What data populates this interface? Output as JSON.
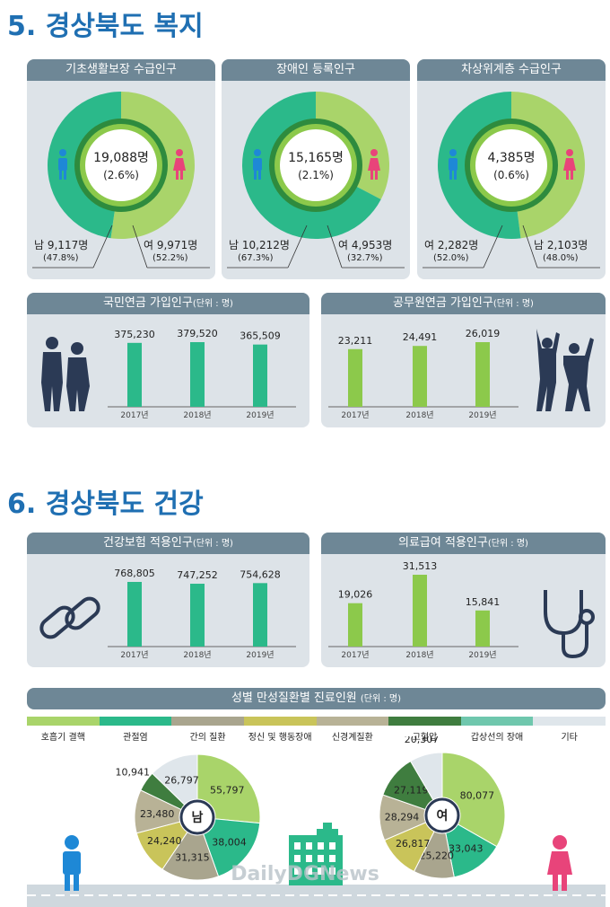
{
  "section5": {
    "title": "5. 경상북도 복지"
  },
  "section6": {
    "title": "6. 경상북도 건강"
  },
  "welfare_donuts": [
    {
      "header": "기초생활보장 수급인구",
      "total": "19,088명",
      "total_pct": "(2.6%)",
      "left_label": "남 9,117명",
      "left_pct": "(47.8%)",
      "right_label": "여 9,971명",
      "right_pct": "(52.2%)"
    },
    {
      "header": "장애인 등록인구",
      "total": "15,165명",
      "total_pct": "(2.1%)",
      "left_label": "남 10,212명",
      "left_pct": "(67.3%)",
      "right_label": "여 4,953명",
      "right_pct": "(32.7%)"
    },
    {
      "header": "차상위계층 수급인구",
      "total": "4,385명",
      "total_pct": "(0.6%)",
      "left_label": "여 2,282명",
      "left_pct": "(52.0%)",
      "right_label": "남 2,103명",
      "right_pct": "(48.0%)"
    }
  ],
  "unit_label": "(단위 : 명)",
  "bar_panels": [
    {
      "title": "국민연금 가입인구",
      "labels": [
        "375,230",
        "379,520",
        "365,509"
      ],
      "years": [
        "2017년",
        "2018년",
        "2019년"
      ]
    },
    {
      "title": "공무원연금 가입인구",
      "labels": [
        "23,211",
        "24,491",
        "26,019"
      ],
      "years": [
        "2017년",
        "2018년",
        "2019년"
      ]
    },
    {
      "title": "건강보험 적용인구",
      "labels": [
        "768,805",
        "747,252",
        "754,628"
      ],
      "years": [
        "2017년",
        "2018년",
        "2019년"
      ]
    },
    {
      "title": "의료급여 적용인구",
      "labels": [
        "19,026",
        "31,513",
        "15,841"
      ],
      "years": [
        "2017년",
        "2018년",
        "2019년"
      ]
    }
  ],
  "disease": {
    "header": "성별 만성질환별 진료인원",
    "legend": [
      "호흡기 결핵",
      "관절염",
      "간의 질환",
      "정신 및 행동장애",
      "신경계질환",
      "고혈압",
      "갑상선의 장애",
      "기타"
    ],
    "male_label": "남",
    "female_label": "여"
  },
  "watermark": "DailyDGNews",
  "colors": {
    "teal": "#2bb98a",
    "lightgreen": "#a9d46a",
    "limegreen": "#8cc94b",
    "ring": "#2e8b3e",
    "header": "#6e8796",
    "panel": "#dde3e8",
    "title": "#1f6fb2"
  },
  "chart_data": [
    {
      "type": "pie",
      "title": "기초생활보장 수급인구",
      "categories": [
        "남",
        "여"
      ],
      "values": [
        9117,
        9971
      ],
      "percent": [
        47.8,
        52.2
      ]
    },
    {
      "type": "pie",
      "title": "장애인 등록인구",
      "categories": [
        "남",
        "여"
      ],
      "values": [
        10212,
        4953
      ],
      "percent": [
        67.3,
        32.7
      ]
    },
    {
      "type": "pie",
      "title": "차상위계층 수급인구",
      "categories": [
        "여",
        "남"
      ],
      "values": [
        2282,
        2103
      ],
      "percent": [
        52.0,
        48.0
      ]
    },
    {
      "type": "bar",
      "title": "국민연금 가입인구",
      "categories": [
        "2017년",
        "2018년",
        "2019년"
      ],
      "values": [
        375230,
        379520,
        365509
      ]
    },
    {
      "type": "bar",
      "title": "공무원연금 가입인구",
      "categories": [
        "2017년",
        "2018년",
        "2019년"
      ],
      "values": [
        23211,
        24491,
        26019
      ]
    },
    {
      "type": "bar",
      "title": "건강보험 적용인구",
      "categories": [
        "2017년",
        "2018년",
        "2019년"
      ],
      "values": [
        768805,
        747252,
        754628
      ]
    },
    {
      "type": "bar",
      "title": "의료급여 적용인구",
      "categories": [
        "2017년",
        "2018년",
        "2019년"
      ],
      "values": [
        19026,
        31513,
        15841
      ]
    },
    {
      "type": "pie",
      "title": "남",
      "categories": [
        "호흡기 결핵",
        "관절염",
        "간의 질환",
        "정신 및 행동장애",
        "신경계질환",
        "고혈압",
        "갑상선의 장애",
        "기타"
      ],
      "values": [
        55797,
        38004,
        31315,
        24240,
        23480,
        10941,
        0,
        26797
      ]
    },
    {
      "type": "pie",
      "title": "여",
      "categories": [
        "호흡기 결핵",
        "관절염",
        "간의 질환",
        "정신 및 행동장애",
        "신경계질환",
        "고혈압",
        "갑상선의 장애",
        "기타"
      ],
      "values": [
        80077,
        33043,
        25220,
        26817,
        28294,
        27119,
        0,
        20307
      ]
    }
  ]
}
